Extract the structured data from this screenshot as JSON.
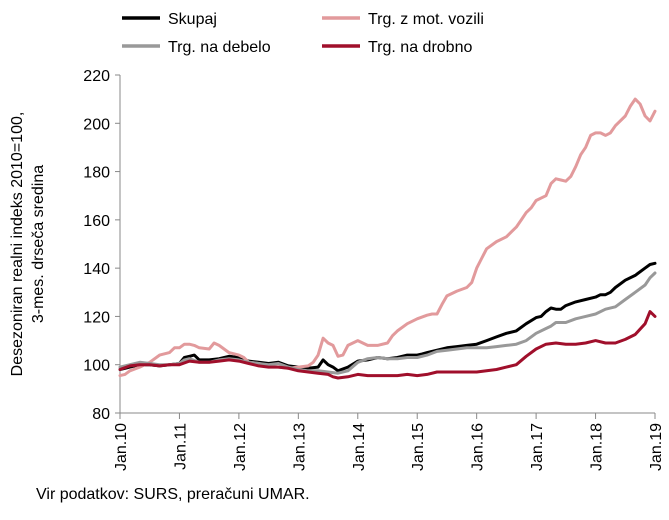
{
  "chart_data": {
    "type": "line",
    "title": "",
    "ylabel_lines": [
      "Desezoniran realni indeks 2010=100,",
      "3-mes. drseča sredina"
    ],
    "xlabel": "",
    "ylim": [
      80,
      220
    ],
    "yticks": [
      80,
      100,
      120,
      140,
      160,
      180,
      200,
      220
    ],
    "xlim": [
      0,
      108
    ],
    "xticks": [
      {
        "label": "Jan.10",
        "x": 0
      },
      {
        "label": "Jan.11",
        "x": 12
      },
      {
        "label": "Jan.12",
        "x": 24
      },
      {
        "label": "Jan.13",
        "x": 36
      },
      {
        "label": "Jan.14",
        "x": 48
      },
      {
        "label": "Jan.15",
        "x": 60
      },
      {
        "label": "Jan.16",
        "x": 72
      },
      {
        "label": "Jan.17",
        "x": 84
      },
      {
        "label": "Jan.18",
        "x": 96
      },
      {
        "label": "Jan.19",
        "x": 108
      }
    ],
    "grid": false,
    "legend_position": "top",
    "series": [
      {
        "name": "Skupaj",
        "color": "#000000",
        "width": 3,
        "points": [
          [
            0,
            98
          ],
          [
            2,
            99
          ],
          [
            4,
            100
          ],
          [
            6,
            100
          ],
          [
            8,
            99.5
          ],
          [
            10,
            100
          ],
          [
            12,
            100.5
          ],
          [
            13,
            103
          ],
          [
            14,
            103.5
          ],
          [
            15,
            104
          ],
          [
            16,
            102
          ],
          [
            18,
            102
          ],
          [
            20,
            102.5
          ],
          [
            22,
            103.5
          ],
          [
            24,
            103
          ],
          [
            26,
            101.5
          ],
          [
            28,
            101
          ],
          [
            30,
            100.5
          ],
          [
            32,
            101
          ],
          [
            34,
            99.5
          ],
          [
            36,
            99
          ],
          [
            38,
            98.5
          ],
          [
            40,
            99
          ],
          [
            41,
            102
          ],
          [
            42,
            100
          ],
          [
            43,
            99
          ],
          [
            44,
            97.5
          ],
          [
            46,
            99
          ],
          [
            48,
            101.5
          ],
          [
            50,
            102
          ],
          [
            52,
            103
          ],
          [
            54,
            102.5
          ],
          [
            56,
            103
          ],
          [
            58,
            104
          ],
          [
            60,
            104
          ],
          [
            61,
            104.5
          ],
          [
            62,
            105
          ],
          [
            64,
            106
          ],
          [
            66,
            107
          ],
          [
            68,
            107.5
          ],
          [
            70,
            108
          ],
          [
            72,
            108.5
          ],
          [
            74,
            110
          ],
          [
            76,
            111.5
          ],
          [
            78,
            113
          ],
          [
            80,
            114
          ],
          [
            82,
            117
          ],
          [
            84,
            119.5
          ],
          [
            85,
            120
          ],
          [
            86,
            122
          ],
          [
            87,
            123.5
          ],
          [
            88,
            123
          ],
          [
            89,
            123
          ],
          [
            90,
            124.5
          ],
          [
            92,
            126
          ],
          [
            94,
            127
          ],
          [
            96,
            128
          ],
          [
            97,
            129
          ],
          [
            98,
            129
          ],
          [
            99,
            130
          ],
          [
            100,
            132
          ],
          [
            102,
            135
          ],
          [
            104,
            137
          ],
          [
            106,
            140
          ],
          [
            107,
            141.5
          ],
          [
            108,
            142
          ]
        ]
      },
      {
        "name": "Trg. z mot. vozili",
        "color": "#e29a9c",
        "width": 3,
        "points": [
          [
            0,
            95.5
          ],
          [
            1,
            96
          ],
          [
            2,
            97.5
          ],
          [
            4,
            99
          ],
          [
            6,
            101
          ],
          [
            8,
            104
          ],
          [
            10,
            105
          ],
          [
            11,
            107
          ],
          [
            12,
            107
          ],
          [
            13,
            108.5
          ],
          [
            14,
            108.5
          ],
          [
            15,
            108
          ],
          [
            16,
            107
          ],
          [
            18,
            106.5
          ],
          [
            19,
            109
          ],
          [
            20,
            108
          ],
          [
            22,
            105
          ],
          [
            24,
            104
          ],
          [
            25,
            103
          ],
          [
            26,
            101
          ],
          [
            28,
            100.5
          ],
          [
            30,
            99.5
          ],
          [
            32,
            99
          ],
          [
            34,
            98.5
          ],
          [
            36,
            99
          ],
          [
            38,
            99.5
          ],
          [
            39,
            101
          ],
          [
            40,
            104
          ],
          [
            41,
            111
          ],
          [
            42,
            109
          ],
          [
            43,
            108
          ],
          [
            44,
            103.5
          ],
          [
            45,
            104
          ],
          [
            46,
            108
          ],
          [
            48,
            110
          ],
          [
            50,
            108
          ],
          [
            52,
            108
          ],
          [
            54,
            109
          ],
          [
            55,
            112
          ],
          [
            56,
            114
          ],
          [
            58,
            117
          ],
          [
            60,
            119
          ],
          [
            62,
            120.5
          ],
          [
            63,
            121
          ],
          [
            64,
            121
          ],
          [
            65,
            125
          ],
          [
            66,
            128.5
          ],
          [
            68,
            130.5
          ],
          [
            70,
            132
          ],
          [
            71,
            134
          ],
          [
            72,
            140
          ],
          [
            73,
            144
          ],
          [
            74,
            148
          ],
          [
            76,
            151
          ],
          [
            78,
            153
          ],
          [
            79,
            155
          ],
          [
            80,
            157
          ],
          [
            81,
            160
          ],
          [
            82,
            163
          ],
          [
            83,
            165
          ],
          [
            84,
            168
          ],
          [
            86,
            170
          ],
          [
            87,
            175
          ],
          [
            88,
            177
          ],
          [
            89,
            176.5
          ],
          [
            90,
            176
          ],
          [
            91,
            178
          ],
          [
            92,
            182
          ],
          [
            93,
            187
          ],
          [
            94,
            190
          ],
          [
            95,
            195
          ],
          [
            96,
            196
          ],
          [
            97,
            196
          ],
          [
            98,
            195
          ],
          [
            99,
            196
          ],
          [
            100,
            199
          ],
          [
            102,
            203
          ],
          [
            103,
            207
          ],
          [
            104,
            210
          ],
          [
            105,
            208
          ],
          [
            106,
            203
          ],
          [
            107,
            201
          ],
          [
            108,
            205
          ]
        ]
      },
      {
        "name": "Trg. na debelo",
        "color": "#999999",
        "width": 3,
        "points": [
          [
            0,
            99
          ],
          [
            2,
            100
          ],
          [
            4,
            101
          ],
          [
            6,
            100.5
          ],
          [
            8,
            100
          ],
          [
            10,
            100
          ],
          [
            12,
            100.5
          ],
          [
            13,
            102
          ],
          [
            14,
            102.5
          ],
          [
            16,
            101
          ],
          [
            18,
            101
          ],
          [
            20,
            102
          ],
          [
            22,
            102.5
          ],
          [
            24,
            102
          ],
          [
            26,
            101
          ],
          [
            28,
            100.5
          ],
          [
            30,
            100
          ],
          [
            32,
            100.5
          ],
          [
            34,
            99
          ],
          [
            36,
            98
          ],
          [
            38,
            97.5
          ],
          [
            40,
            97.5
          ],
          [
            42,
            97
          ],
          [
            44,
            96.5
          ],
          [
            46,
            97.5
          ],
          [
            48,
            101
          ],
          [
            50,
            102.5
          ],
          [
            52,
            103
          ],
          [
            54,
            102.5
          ],
          [
            56,
            102.5
          ],
          [
            58,
            103
          ],
          [
            60,
            103
          ],
          [
            62,
            104
          ],
          [
            64,
            105.5
          ],
          [
            66,
            106
          ],
          [
            68,
            106.5
          ],
          [
            70,
            107
          ],
          [
            72,
            107
          ],
          [
            74,
            107
          ],
          [
            76,
            107.5
          ],
          [
            78,
            108
          ],
          [
            80,
            108.5
          ],
          [
            82,
            110
          ],
          [
            84,
            113
          ],
          [
            86,
            115
          ],
          [
            87,
            116
          ],
          [
            88,
            117.5
          ],
          [
            90,
            117.5
          ],
          [
            92,
            119
          ],
          [
            94,
            120
          ],
          [
            96,
            121
          ],
          [
            98,
            123
          ],
          [
            100,
            124
          ],
          [
            102,
            127
          ],
          [
            104,
            130
          ],
          [
            106,
            133
          ],
          [
            107,
            136
          ],
          [
            108,
            138
          ]
        ]
      },
      {
        "name": "Trg. na drobno",
        "color": "#a00f2b",
        "width": 3,
        "points": [
          [
            0,
            98
          ],
          [
            2,
            99.5
          ],
          [
            4,
            100
          ],
          [
            6,
            100
          ],
          [
            8,
            99.5
          ],
          [
            10,
            100
          ],
          [
            12,
            100
          ],
          [
            14,
            101.5
          ],
          [
            16,
            101
          ],
          [
            18,
            101
          ],
          [
            20,
            101.5
          ],
          [
            22,
            102
          ],
          [
            24,
            101.5
          ],
          [
            26,
            100.5
          ],
          [
            28,
            99.5
          ],
          [
            30,
            99
          ],
          [
            32,
            99
          ],
          [
            34,
            98.5
          ],
          [
            36,
            97.5
          ],
          [
            38,
            97
          ],
          [
            40,
            96.5
          ],
          [
            42,
            96
          ],
          [
            43,
            95
          ],
          [
            44,
            94.5
          ],
          [
            46,
            95
          ],
          [
            48,
            96
          ],
          [
            50,
            95.5
          ],
          [
            52,
            95.5
          ],
          [
            54,
            95.5
          ],
          [
            56,
            95.5
          ],
          [
            58,
            96
          ],
          [
            60,
            95.5
          ],
          [
            62,
            96
          ],
          [
            64,
            97
          ],
          [
            66,
            97
          ],
          [
            68,
            97
          ],
          [
            70,
            97
          ],
          [
            72,
            97
          ],
          [
            74,
            97.5
          ],
          [
            76,
            98
          ],
          [
            78,
            99
          ],
          [
            80,
            100
          ],
          [
            82,
            103.5
          ],
          [
            84,
            106.5
          ],
          [
            86,
            108.5
          ],
          [
            88,
            109
          ],
          [
            90,
            108.5
          ],
          [
            92,
            108.5
          ],
          [
            94,
            109
          ],
          [
            96,
            110
          ],
          [
            98,
            109
          ],
          [
            100,
            109
          ],
          [
            102,
            110.5
          ],
          [
            104,
            112.5
          ],
          [
            106,
            117
          ],
          [
            107,
            122
          ],
          [
            108,
            120
          ]
        ]
      }
    ],
    "legend": [
      {
        "label": "Skupaj",
        "color": "#000000"
      },
      {
        "label": "Trg. z mot. vozili",
        "color": "#e29a9c"
      },
      {
        "label": "Trg. na debelo",
        "color": "#999999"
      },
      {
        "label": "Trg. na drobno",
        "color": "#a00f2b"
      }
    ]
  },
  "source_note": "Vir podatkov: SURS, preračuni UMAR."
}
